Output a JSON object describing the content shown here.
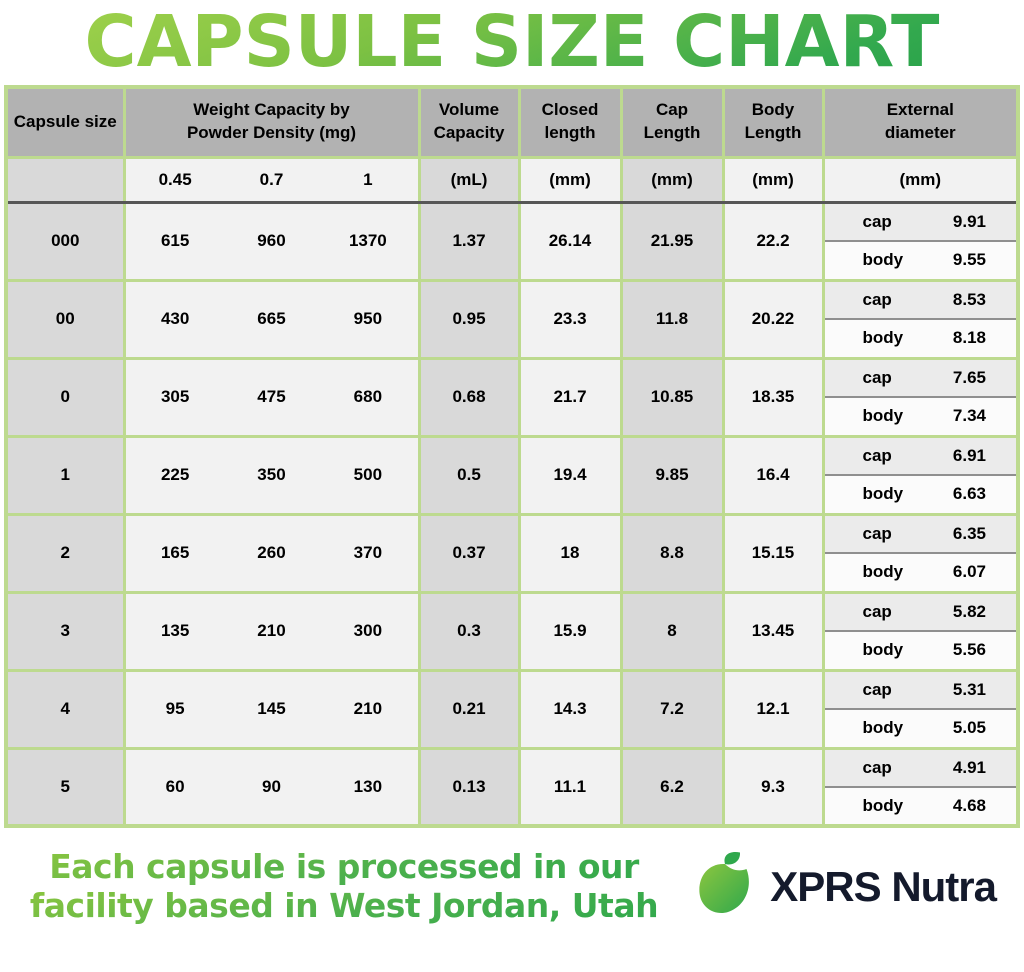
{
  "title": "CAPSULE SIZE CHART",
  "chart_data": {
    "type": "table",
    "title": "CAPSULE SIZE CHART",
    "header": {
      "capsule_size": "Capsule size",
      "weight": "Weight Capacity by\nPowder Density (mg)",
      "volume": "Volume\nCapacity",
      "closed": "Closed\nlength",
      "cap_length": "Cap\nLength",
      "body_length": "Body\nLength",
      "external": "External\ndiameter"
    },
    "subheader": {
      "densities": [
        "0.45",
        "0.7",
        "1"
      ],
      "volume_unit": "(mL)",
      "closed_unit": "(mm)",
      "cap_unit": "(mm)",
      "body_unit": "(mm)",
      "external_unit": "(mm)"
    },
    "rows": [
      {
        "size": "000",
        "weights": [
          "615",
          "960",
          "1370"
        ],
        "volume": "1.37",
        "closed": "26.14",
        "cap_length": "21.95",
        "body_length": "22.2",
        "cap_label": "cap",
        "cap_diameter": "9.91",
        "body_label": "body",
        "body_diameter": "9.55"
      },
      {
        "size": "00",
        "weights": [
          "430",
          "665",
          "950"
        ],
        "volume": "0.95",
        "closed": "23.3",
        "cap_length": "11.8",
        "body_length": "20.22",
        "cap_label": "cap",
        "cap_diameter": "8.53",
        "body_label": "body",
        "body_diameter": "8.18"
      },
      {
        "size": "0",
        "weights": [
          "305",
          "475",
          "680"
        ],
        "volume": "0.68",
        "closed": "21.7",
        "cap_length": "10.85",
        "body_length": "18.35",
        "cap_label": "cap",
        "cap_diameter": "7.65",
        "body_label": "body",
        "body_diameter": "7.34"
      },
      {
        "size": "1",
        "weights": [
          "225",
          "350",
          "500"
        ],
        "volume": "0.5",
        "closed": "19.4",
        "cap_length": "9.85",
        "body_length": "16.4",
        "cap_label": "cap",
        "cap_diameter": "6.91",
        "body_label": "body",
        "body_diameter": "6.63"
      },
      {
        "size": "2",
        "weights": [
          "165",
          "260",
          "370"
        ],
        "volume": "0.37",
        "closed": "18",
        "cap_length": "8.8",
        "body_length": "15.15",
        "cap_label": "cap",
        "cap_diameter": "6.35",
        "body_label": "body",
        "body_diameter": "6.07"
      },
      {
        "size": "3",
        "weights": [
          "135",
          "210",
          "300"
        ],
        "volume": "0.3",
        "closed": "15.9",
        "cap_length": "8",
        "body_length": "13.45",
        "cap_label": "cap",
        "cap_diameter": "5.82",
        "body_label": "body",
        "body_diameter": "5.56"
      },
      {
        "size": "4",
        "weights": [
          "95",
          "145",
          "210"
        ],
        "volume": "0.21",
        "closed": "14.3",
        "cap_length": "7.2",
        "body_length": "12.1",
        "cap_label": "cap",
        "cap_diameter": "5.31",
        "body_label": "body",
        "body_diameter": "5.05"
      },
      {
        "size": "5",
        "weights": [
          "60",
          "90",
          "130"
        ],
        "volume": "0.13",
        "closed": "11.1",
        "cap_length": "6.2",
        "body_length": "9.3",
        "cap_label": "cap",
        "cap_diameter": "4.91",
        "body_label": "body",
        "body_diameter": "4.68"
      }
    ]
  },
  "footer": {
    "tagline_line1": "Each capsule is processed in our",
    "tagline_line2": "facility based in West Jordan, Utah",
    "brand": "XPRS Nutra"
  },
  "colors": {
    "title_green_light": "#a6d44c",
    "title_green_dark": "#259f49",
    "table_border_green": "#bdda8f",
    "header_gray": "#b2b2b2",
    "column_gray": "#d9d9d9",
    "column_light": "#f2f2f2",
    "subheader_divider": "#565656",
    "brand_navy": "#141a2c",
    "logo_green_light": "#8cc63f",
    "logo_green_dark": "#2fa84c"
  }
}
